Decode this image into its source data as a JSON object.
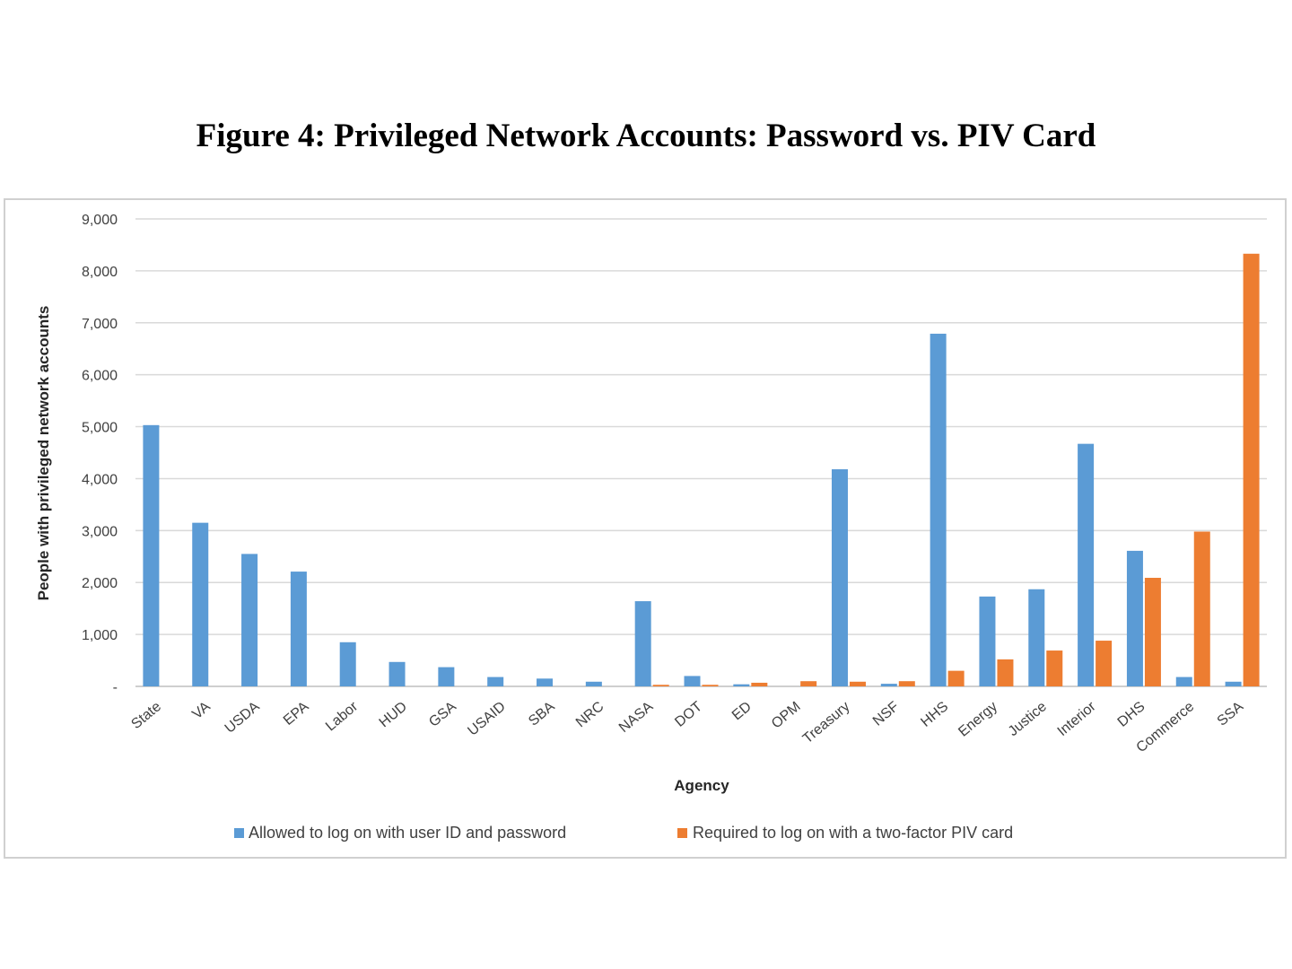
{
  "figure_title": "Figure 4:  Privileged Network Accounts: Password vs. PIV Card",
  "colors": {
    "password": "#5b9bd5",
    "piv": "#ed7d31",
    "grid": "#d9d9d9"
  },
  "chart_data": {
    "type": "bar",
    "title": "Figure 4:  Privileged Network Accounts: Password vs. PIV Card",
    "xlabel": "Agency",
    "ylabel": "People with privileged network accounts",
    "ylim": [
      0,
      9000
    ],
    "ytick_labels": [
      "-",
      "1,000",
      "2,000",
      "3,000",
      "4,000",
      "5,000",
      "6,000",
      "7,000",
      "8,000",
      "9,000"
    ],
    "yticks": [
      0,
      1000,
      2000,
      3000,
      4000,
      5000,
      6000,
      7000,
      8000,
      9000
    ],
    "grid": true,
    "legend_position": "bottom",
    "categories": [
      "State",
      "VA",
      "USDA",
      "EPA",
      "Labor",
      "HUD",
      "GSA",
      "USAID",
      "SBA",
      "NRC",
      "NASA",
      "DOT",
      "ED",
      "OPM",
      "Treasury",
      "NSF",
      "HHS",
      "Energy",
      "Justice",
      "Interior",
      "DHS",
      "Commerce",
      "SSA"
    ],
    "series": [
      {
        "name": "Allowed to log on with user ID and password",
        "values": [
          5030,
          3150,
          2550,
          2210,
          850,
          470,
          370,
          180,
          150,
          90,
          1640,
          200,
          40,
          0,
          4180,
          50,
          6790,
          1730,
          1870,
          4670,
          2610,
          180,
          90
        ]
      },
      {
        "name": "Required to log on with a two-factor PIV card",
        "values": [
          0,
          0,
          0,
          0,
          0,
          0,
          0,
          0,
          0,
          0,
          30,
          30,
          70,
          100,
          90,
          100,
          300,
          520,
          690,
          880,
          2090,
          2980,
          8330
        ]
      }
    ]
  }
}
